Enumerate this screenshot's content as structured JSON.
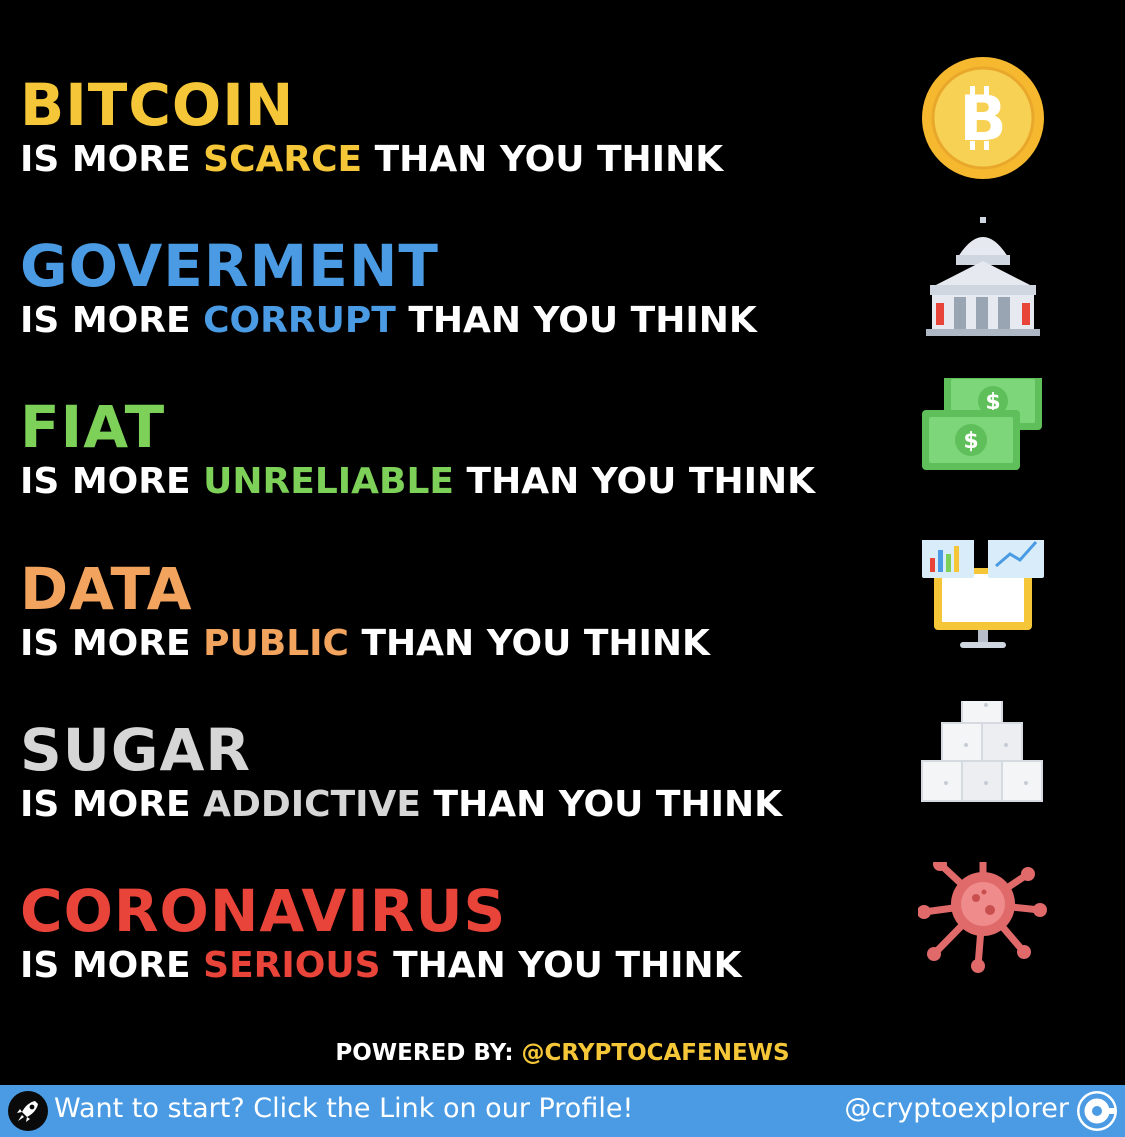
{
  "rows": [
    {
      "title": "BITCOIN",
      "prefix": "IS MORE ",
      "keyword": "SCARCE",
      "suffix": " THAN YOU THINK",
      "color": "#f5c738",
      "icon": "bitcoin-coin-icon"
    },
    {
      "title": "GOVERMENT",
      "prefix": "IS MORE ",
      "keyword": "CORRUPT",
      "suffix": " THAN YOU THINK",
      "color": "#4a9be3",
      "icon": "government-building-icon"
    },
    {
      "title": "FIAT",
      "prefix": "IS MORE ",
      "keyword": "UNRELIABLE",
      "suffix": " THAN YOU THINK",
      "color": "#7dd158",
      "icon": "dollar-bills-icon"
    },
    {
      "title": "DATA",
      "prefix": "IS MORE ",
      "keyword": "PUBLIC",
      "suffix": " THAN YOU THINK",
      "color": "#f2a45e",
      "icon": "computer-monitor-icon"
    },
    {
      "title": "SUGAR",
      "prefix": "IS MORE ",
      "keyword": "ADDICTIVE",
      "suffix": " THAN YOU THINK",
      "color": "#d6d6d6",
      "icon": "sugar-cubes-icon"
    },
    {
      "title": "CORONAVIRUS",
      "prefix": "IS MORE ",
      "keyword": "SERIOUS",
      "suffix": " THAN YOU THINK",
      "color": "#e8443a",
      "icon": "virus-icon"
    }
  ],
  "footer": {
    "powered_label": "POWERED BY: ",
    "powered_handle": "@CRYPTOCAFENEWS",
    "powered_handle_color": "#f5c738",
    "cta": "Want to start? Click the Link on our Profile!",
    "handle": "@cryptoexplorer",
    "bar_color": "#4a9be3",
    "left_icon": "rocket-icon",
    "right_icon": "brand-logo-icon"
  }
}
